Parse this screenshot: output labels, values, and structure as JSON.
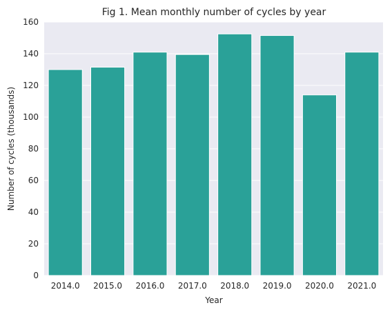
{
  "chart_data": {
    "type": "bar",
    "title": "Fig 1. Mean monthly number of cycles by year",
    "xlabel": "Year",
    "ylabel": "Number of cycles (thousands)",
    "categories": [
      "2014.0",
      "2015.0",
      "2016.0",
      "2017.0",
      "2018.0",
      "2019.0",
      "2020.0",
      "2021.0"
    ],
    "values": [
      130,
      131.5,
      141,
      139.5,
      152.5,
      151.5,
      114,
      141
    ],
    "ylim": [
      0,
      160
    ],
    "yticks": [
      0,
      20,
      40,
      60,
      80,
      100,
      120,
      140,
      160
    ],
    "grid": true,
    "colors": {
      "bar": "#2aa198",
      "plot_background": "#eaeaf2",
      "grid": "#ffffff",
      "text": "#262626"
    }
  }
}
